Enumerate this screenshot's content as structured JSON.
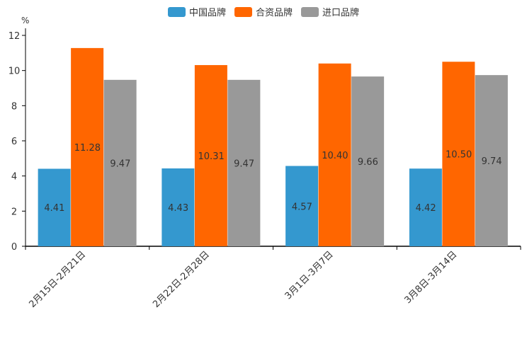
{
  "chart_data": {
    "type": "bar",
    "title": "",
    "unit": "%",
    "xlabel": "",
    "ylabel": "%",
    "ylim": [
      0,
      12
    ],
    "yticks": [
      0,
      2,
      4,
      6,
      8,
      10,
      12
    ],
    "categories": [
      "2月15日-2月21日",
      "2月22日-2月28日",
      "3月1日-3月7日",
      "3月8日-3月14日"
    ],
    "series": [
      {
        "name": "中国品牌",
        "color": "#3498cf",
        "values": [
          4.41,
          4.43,
          4.57,
          4.42
        ],
        "labels": [
          "4.41",
          "4.43",
          "4.57",
          "4.42"
        ]
      },
      {
        "name": "合资品牌",
        "color": "#ff6600",
        "values": [
          11.28,
          10.31,
          10.4,
          10.5
        ],
        "labels": [
          "11.28",
          "10.31",
          "10.40",
          "10.50"
        ]
      },
      {
        "name": "进口品牌",
        "color": "#999999",
        "values": [
          9.47,
          9.47,
          9.66,
          9.74
        ],
        "labels": [
          "9.47",
          "9.47",
          "9.66",
          "9.74"
        ]
      }
    ],
    "legend_position": "top-center",
    "grid": false
  }
}
